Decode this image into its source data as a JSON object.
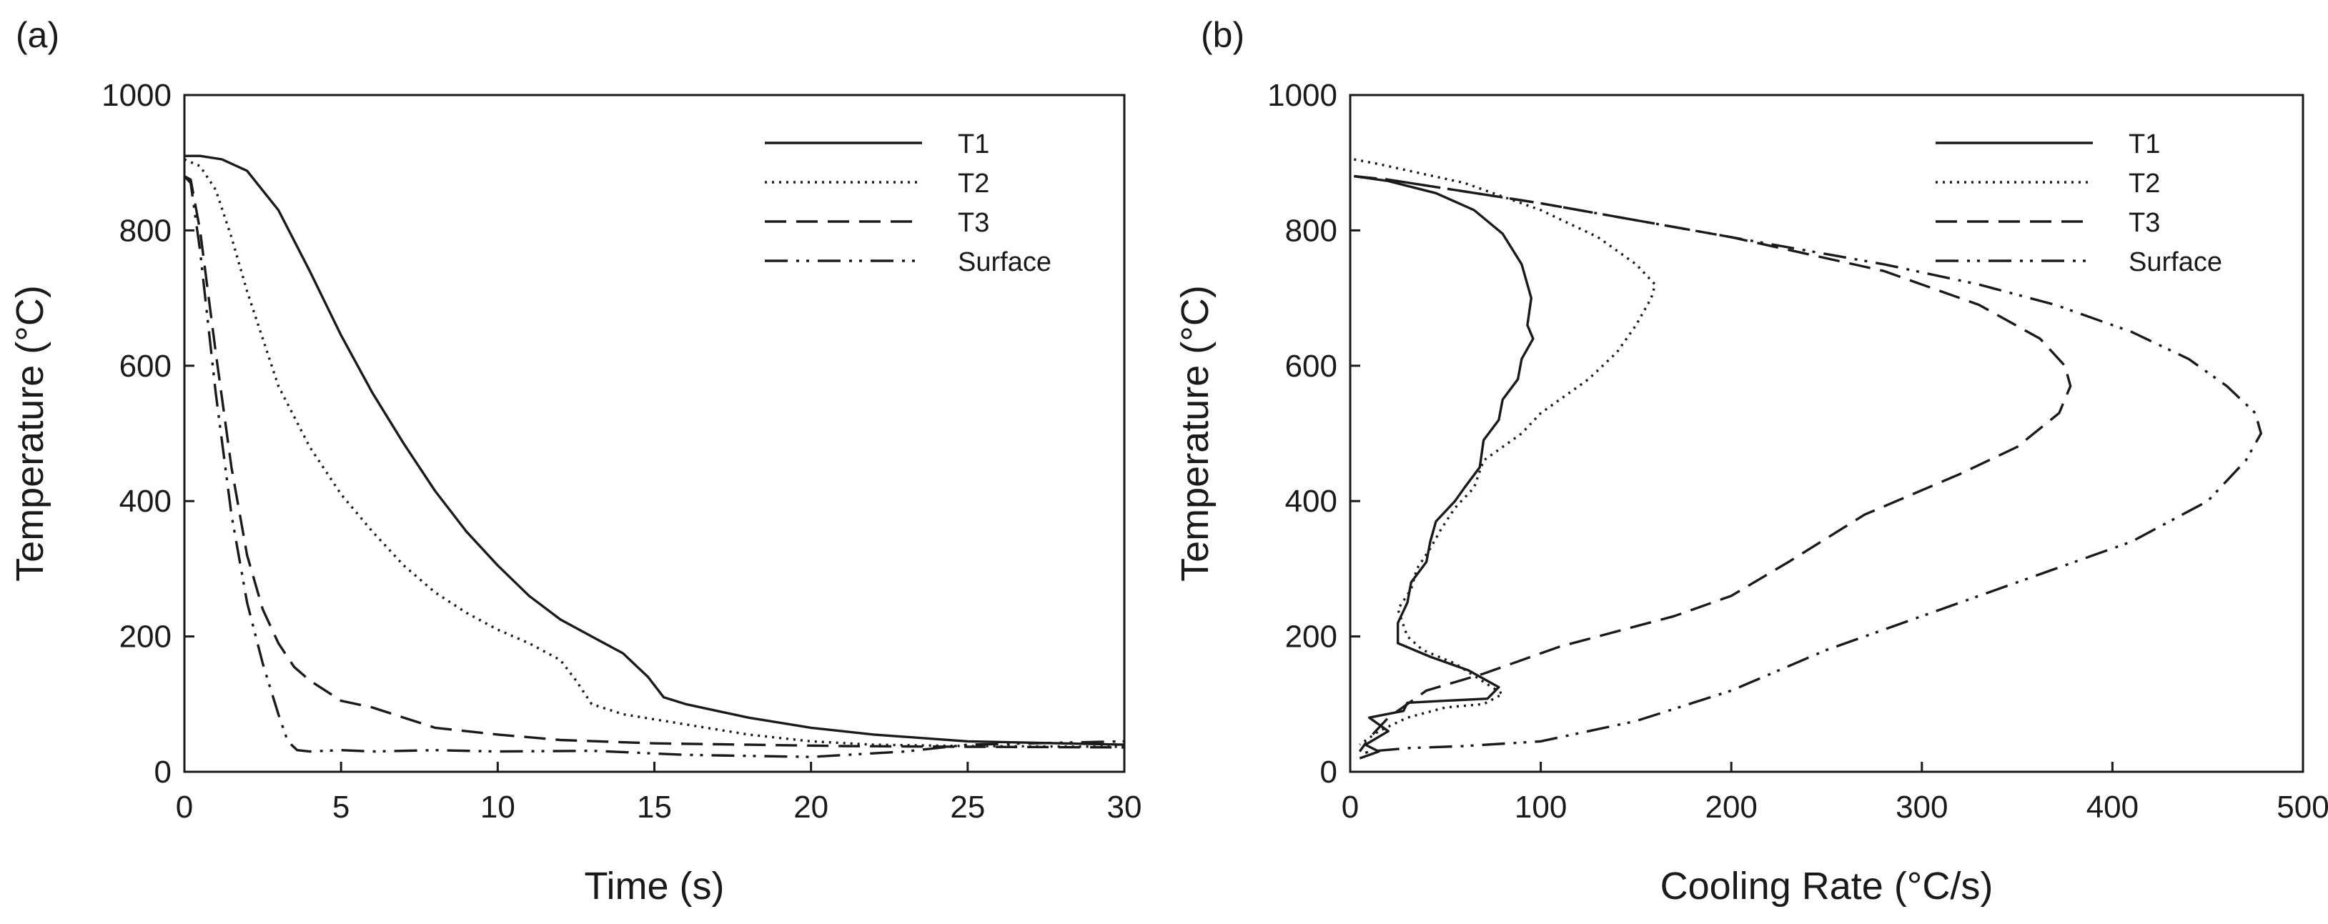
{
  "chart_data": [
    {
      "type": "line",
      "panel_label": "(a)",
      "title": "",
      "xlabel": "Time (s)",
      "ylabel": "Temperature (°C)",
      "xlim": [
        0,
        30
      ],
      "ylim": [
        0,
        1000
      ],
      "xticks": [
        "0",
        "5",
        "10",
        "15",
        "20",
        "25",
        "30"
      ],
      "yticks": [
        "0",
        "200",
        "400",
        "600",
        "800",
        "1000"
      ],
      "grid": false,
      "legend_position": "top-right",
      "series": [
        {
          "name": "T1",
          "style": "solid",
          "x": [
            0,
            0.5,
            1.2,
            2,
            3,
            4,
            5,
            6,
            7,
            8,
            9,
            10,
            11,
            12,
            13,
            14,
            14.8,
            15.3,
            16,
            17,
            18,
            20,
            22,
            25,
            30
          ],
          "y": [
            910,
            910,
            905,
            888,
            830,
            740,
            645,
            560,
            485,
            415,
            355,
            305,
            260,
            225,
            200,
            175,
            140,
            110,
            100,
            90,
            80,
            65,
            55,
            45,
            40
          ]
        },
        {
          "name": "T2",
          "style": "dotted",
          "x": [
            0,
            0.5,
            1,
            1.5,
            2,
            3,
            4,
            5,
            6,
            7,
            8,
            9,
            10,
            11,
            12,
            12.5,
            13,
            14,
            16,
            18,
            20,
            22,
            25,
            30
          ],
          "y": [
            905,
            895,
            860,
            790,
            710,
            570,
            480,
            410,
            355,
            305,
            265,
            235,
            210,
            190,
            165,
            135,
            100,
            85,
            70,
            55,
            45,
            40,
            38,
            37
          ]
        },
        {
          "name": "T3",
          "style": "dashed",
          "x": [
            0,
            0.2,
            0.5,
            1,
            1.5,
            2,
            2.5,
            3,
            3.5,
            4,
            5,
            6,
            7,
            8,
            10,
            12,
            15,
            18,
            21,
            25,
            30
          ],
          "y": [
            880,
            875,
            800,
            620,
            450,
            320,
            240,
            190,
            155,
            135,
            105,
            95,
            80,
            65,
            55,
            47,
            42,
            40,
            38,
            37,
            36
          ]
        },
        {
          "name": "Surface",
          "style": "dashdotdot",
          "x": [
            0,
            0.2,
            0.5,
            1,
            1.5,
            2,
            2.5,
            3,
            3.3,
            3.6,
            4,
            5,
            6,
            8,
            10,
            13,
            16,
            20,
            23,
            25,
            30
          ],
          "y": [
            880,
            870,
            770,
            560,
            380,
            250,
            160,
            85,
            45,
            32,
            30,
            32,
            30,
            32,
            30,
            31,
            25,
            22,
            30,
            40,
            45
          ]
        }
      ]
    },
    {
      "type": "line",
      "panel_label": "(b)",
      "title": "",
      "xlabel": "Cooling Rate (°C/s)",
      "ylabel": "Temperature (°C)",
      "xlim": [
        0,
        500
      ],
      "ylim": [
        0,
        1000
      ],
      "xticks": [
        "0",
        "100",
        "200",
        "300",
        "400",
        "500"
      ],
      "yticks": [
        "0",
        "200",
        "400",
        "600",
        "800",
        "1000"
      ],
      "grid": false,
      "legend_position": "top-right",
      "series": [
        {
          "name": "T1",
          "style": "solid",
          "x": [
            2,
            20,
            45,
            65,
            80,
            90,
            95,
            93,
            96,
            90,
            88,
            80,
            78,
            70,
            68,
            60,
            55,
            45,
            42,
            40,
            32,
            30,
            25,
            25,
            42,
            62,
            78,
            72,
            50,
            30,
            28,
            10,
            20,
            8,
            15,
            5
          ],
          "y": [
            880,
            873,
            855,
            830,
            795,
            750,
            700,
            660,
            640,
            610,
            580,
            550,
            520,
            490,
            450,
            420,
            400,
            370,
            340,
            310,
            280,
            250,
            220,
            190,
            170,
            150,
            125,
            108,
            105,
            102,
            90,
            80,
            60,
            40,
            30,
            20
          ]
        },
        {
          "name": "T2",
          "style": "dotted",
          "x": [
            2,
            15,
            60,
            100,
            130,
            150,
            160,
            158,
            150,
            140,
            125,
            100,
            90,
            70,
            65,
            55,
            48,
            42,
            35,
            32,
            25,
            30,
            38,
            55,
            80,
            70,
            50,
            30,
            15,
            5
          ],
          "y": [
            905,
            898,
            870,
            830,
            790,
            750,
            720,
            700,
            660,
            620,
            580,
            530,
            500,
            460,
            420,
            390,
            360,
            330,
            300,
            270,
            240,
            200,
            180,
            160,
            115,
            100,
            95,
            80,
            60,
            40
          ]
        },
        {
          "name": "T3",
          "style": "dashed",
          "x": [
            2,
            20,
            100,
            200,
            280,
            330,
            362,
            375,
            378,
            372,
            350,
            320,
            270,
            230,
            200,
            170,
            130,
            110,
            95,
            70,
            40,
            20,
            10,
            5
          ],
          "y": [
            880,
            875,
            840,
            790,
            740,
            690,
            640,
            600,
            570,
            530,
            480,
            440,
            380,
            310,
            260,
            230,
            200,
            185,
            170,
            145,
            120,
            80,
            50,
            30
          ]
        },
        {
          "name": "Surface",
          "style": "dashdotdot",
          "x": [
            2,
            20,
            100,
            200,
            280,
            330,
            370,
            410,
            440,
            460,
            475,
            478,
            470,
            450,
            410,
            360,
            300,
            250,
            200,
            150,
            100,
            60,
            30,
            10,
            5
          ],
          "y": [
            880,
            875,
            840,
            790,
            750,
            720,
            690,
            650,
            610,
            570,
            530,
            500,
            460,
            400,
            340,
            290,
            230,
            180,
            120,
            75,
            45,
            38,
            35,
            30,
            25
          ]
        }
      ]
    }
  ]
}
